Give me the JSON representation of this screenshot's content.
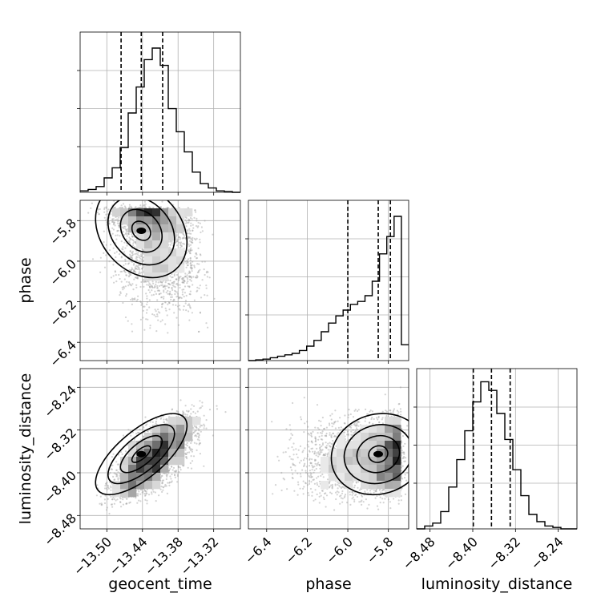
{
  "chart_data": {
    "type": "corner",
    "parameters": [
      "geocent_time",
      "phase",
      "luminosity_distance"
    ],
    "axis_labels": {
      "geocent_time": "geocent_time",
      "phase": "phase",
      "luminosity_distance": "luminosity_distance"
    },
    "ranges": {
      "geocent_time": [
        -13.545,
        -13.275
      ],
      "phase": [
        -6.49,
        -5.7
      ],
      "luminosity_distance": [
        -8.505,
        -8.205
      ]
    },
    "ticks": {
      "geocent_time": [
        {
          "value": -13.5,
          "label": "−13.50"
        },
        {
          "value": -13.44,
          "label": "−13.44"
        },
        {
          "value": -13.38,
          "label": "−13.38"
        },
        {
          "value": -13.32,
          "label": "−13.32"
        }
      ],
      "phase": [
        {
          "value": -6.4,
          "label": "−6.4"
        },
        {
          "value": -6.2,
          "label": "−6.2"
        },
        {
          "value": -6.0,
          "label": "−6.0"
        },
        {
          "value": -5.8,
          "label": "−5.8"
        }
      ],
      "luminosity_distance": [
        {
          "value": -8.48,
          "label": "−8.48"
        },
        {
          "value": -8.4,
          "label": "−8.40"
        },
        {
          "value": -8.32,
          "label": "−8.32"
        },
        {
          "value": -8.24,
          "label": "−8.24"
        }
      ]
    },
    "quantiles": {
      "geocent_time": [
        -13.476,
        -13.442,
        -13.406
      ],
      "phase": [
        -6.0,
        -5.85,
        -5.79
      ],
      "luminosity_distance": [
        -8.399,
        -8.365,
        -8.33
      ]
    },
    "histograms": {
      "geocent_time": [
        0.01,
        0.02,
        0.04,
        0.1,
        0.17,
        0.31,
        0.55,
        0.73,
        0.92,
        1.0,
        0.88,
        0.58,
        0.42,
        0.28,
        0.14,
        0.06,
        0.03,
        0.01,
        0.005,
        0.0
      ],
      "phase": [
        0.0,
        0.005,
        0.01,
        0.02,
        0.03,
        0.04,
        0.05,
        0.07,
        0.1,
        0.14,
        0.2,
        0.26,
        0.31,
        0.35,
        0.39,
        0.41,
        0.45,
        0.55,
        0.74,
        0.86,
        1.0,
        0.11
      ],
      "luminosity_distance": [
        0.0,
        0.02,
        0.04,
        0.12,
        0.29,
        0.48,
        0.68,
        0.88,
        1.02,
        0.96,
        0.8,
        0.62,
        0.41,
        0.23,
        0.1,
        0.05,
        0.02,
        0.01,
        0.0,
        0.0
      ]
    },
    "correlations": {
      "geocent_time__phase": -0.25,
      "geocent_time__luminosity_distance": 0.7,
      "phase__luminosity_distance": 0.1
    },
    "grid": true,
    "colors": {
      "lines": "#000000",
      "points": "#9e9e9e",
      "grid": "#b0b0b0"
    }
  }
}
